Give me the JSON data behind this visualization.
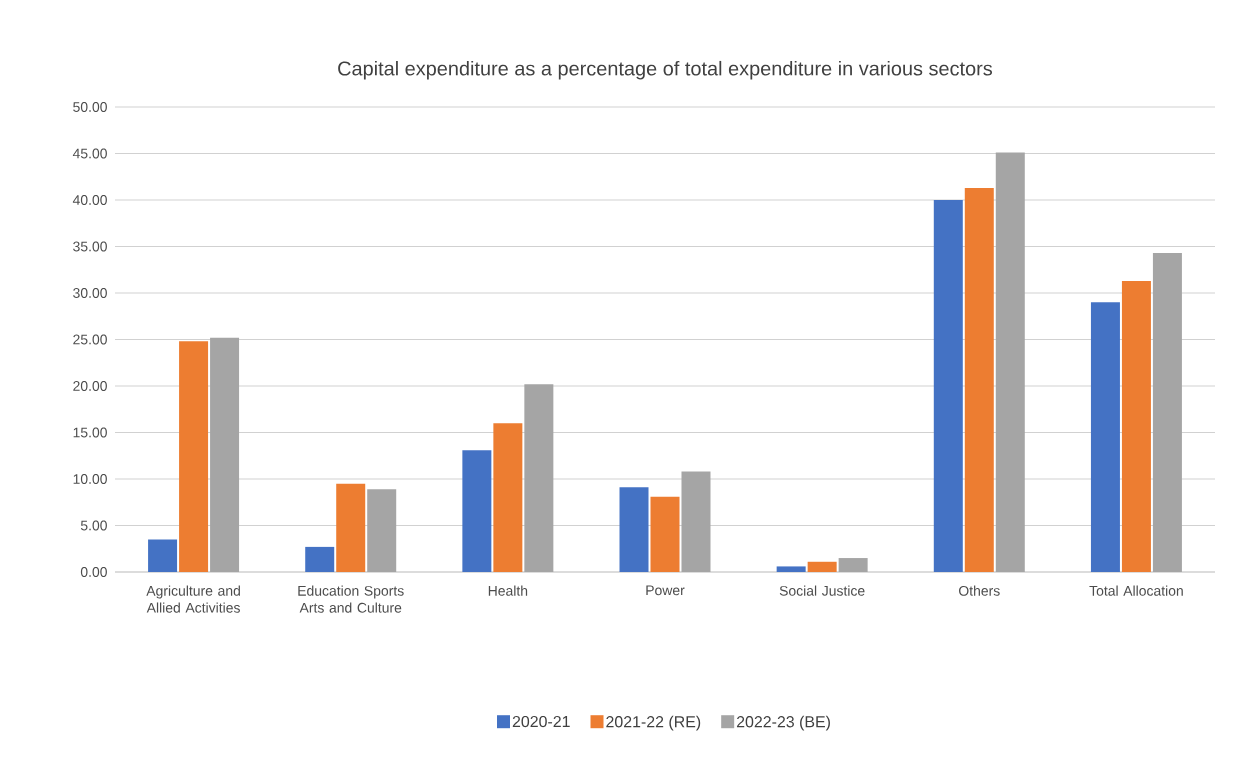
{
  "chart_data": {
    "type": "bar",
    "title": "Capital expenditure as a percentage of total expenditure  in various sectors",
    "categories": [
      "Agriculture and Allied Activities",
      "Education Sports Arts and Culture",
      "Health",
      "Power",
      "Social Justice",
      "Others",
      "Total Allocation"
    ],
    "series": [
      {
        "name": "2020-21",
        "color": "#4472c4",
        "values": [
          3.5,
          2.7,
          13.1,
          9.1,
          0.6,
          40.0,
          29.0
        ]
      },
      {
        "name": "2021-22 (RE)",
        "color": "#ed7d31",
        "values": [
          24.8,
          9.5,
          16.0,
          8.1,
          1.1,
          41.3,
          31.3
        ]
      },
      {
        "name": "2022-23 (BE)",
        "color": "#a5a5a5",
        "values": [
          25.2,
          8.9,
          20.2,
          10.8,
          1.5,
          45.1,
          34.3
        ]
      }
    ],
    "ylim": [
      0,
      50
    ],
    "yticks": [
      {
        "value": 0,
        "label": "0.00"
      },
      {
        "value": 5,
        "label": "5.00"
      },
      {
        "value": 10,
        "label": "10.00"
      },
      {
        "value": 15,
        "label": "15.00"
      },
      {
        "value": 20,
        "label": "20.00"
      },
      {
        "value": 25,
        "label": "25.00"
      },
      {
        "value": 30,
        "label": "30.00"
      },
      {
        "value": 35,
        "label": "35.00"
      },
      {
        "value": 40,
        "label": "40.00"
      },
      {
        "value": 45,
        "label": "45.00"
      },
      {
        "value": 50,
        "label": "50.00"
      }
    ],
    "grid": "y",
    "legend": "bottom"
  }
}
